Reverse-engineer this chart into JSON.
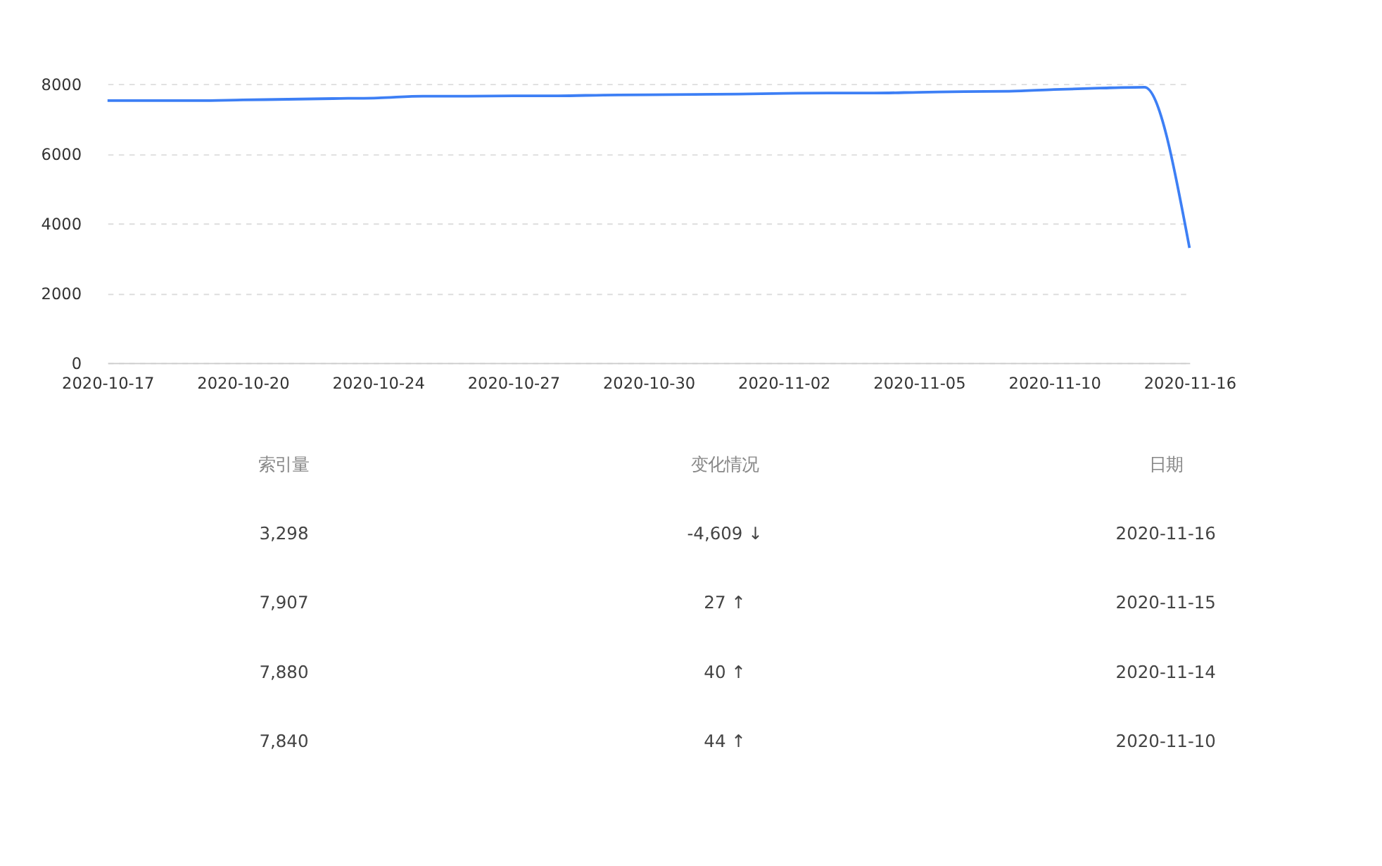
{
  "chart_data": {
    "type": "line",
    "categories": [
      "2020-10-17",
      null,
      null,
      "2020-10-20",
      null,
      null,
      "2020-10-24",
      null,
      null,
      "2020-10-27",
      null,
      null,
      "2020-10-30",
      null,
      null,
      "2020-11-02",
      null,
      null,
      "2020-11-05",
      null,
      null,
      "2020-11-10",
      null,
      null,
      "2020-11-16"
    ],
    "series": [
      {
        "color": "#3d7ff5",
        "values": [
          7520,
          7520,
          7520,
          7540,
          7560,
          7580,
          7600,
          7650,
          7650,
          7660,
          7660,
          7680,
          7690,
          7700,
          7710,
          7730,
          7740,
          7740,
          7760,
          7780,
          7790,
          7840,
          7880,
          7907,
          3298
        ]
      }
    ],
    "ylim": [
      0,
      8000
    ],
    "yticks": [
      0,
      2000,
      4000,
      6000,
      8000
    ],
    "grid": "y",
    "legend": false,
    "marker": "none",
    "line_style": "solid",
    "annotations": [
      "索引量",
      "变化情况",
      "日期",
      "3,298",
      "-4,609 ↓",
      "2020-11-16",
      "7,907",
      "27 ↑",
      "2020-11-15",
      "7,880",
      "40 ↑",
      "2020-11-14",
      "7,840",
      "44 ↑",
      "2020-11-10"
    ]
  }
}
